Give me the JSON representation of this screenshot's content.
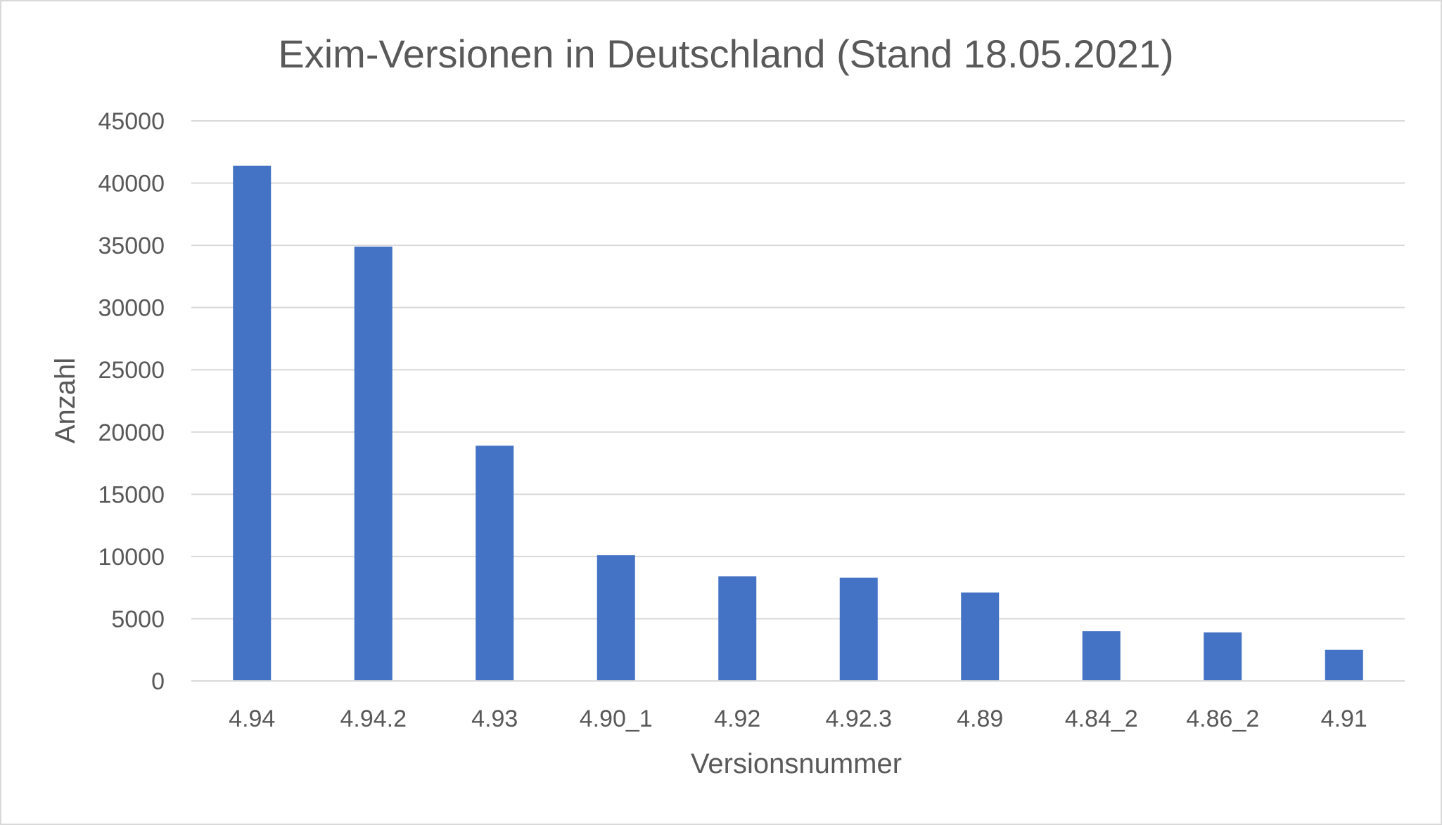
{
  "chart_data": {
    "type": "bar",
    "title": "Exim-Versionen in Deutschland (Stand 18.05.2021)",
    "xlabel": "Versionsnummer",
    "ylabel": "Anzahl",
    "categories": [
      "4.94",
      "4.94.2",
      "4.93",
      "4.90_1",
      "4.92",
      "4.92.3",
      "4.89",
      "4.84_2",
      "4.86_2",
      "4.91"
    ],
    "series": [
      {
        "values": [
          41400,
          34900,
          18900,
          10100,
          8400,
          8300,
          7100,
          4000,
          3900,
          2500
        ]
      }
    ],
    "ylim": [
      0,
      45000
    ],
    "yticks": [
      0,
      5000,
      10000,
      15000,
      20000,
      25000,
      30000,
      35000,
      40000,
      45000
    ],
    "grid": "horizontal",
    "legend": "none",
    "bar_color": "#4472c4",
    "gridline_color": "#d9d9d9",
    "text_color": "#595959"
  }
}
